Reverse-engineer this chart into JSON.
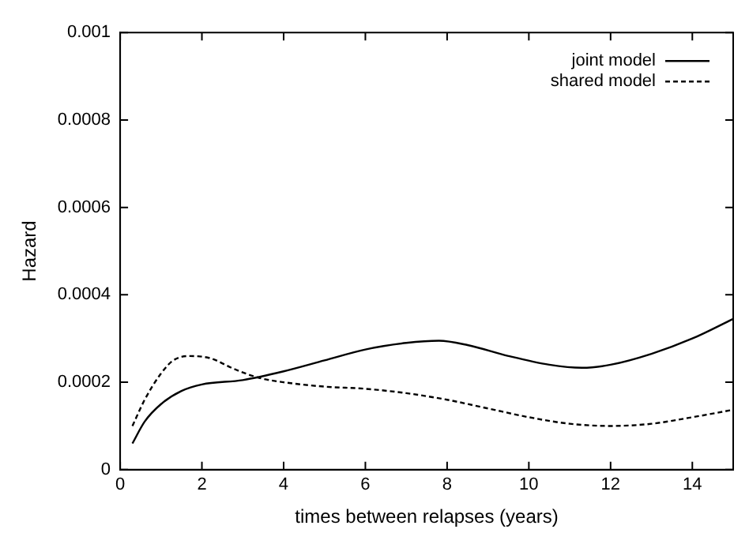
{
  "chart_data": {
    "type": "line",
    "xlabel": "times between relapses (years)",
    "ylabel": "Hazard",
    "xlim": [
      0,
      15
    ],
    "xticks": [
      0,
      2,
      4,
      6,
      8,
      10,
      12,
      14
    ],
    "ylim": [
      0,
      0.001
    ],
    "yticks": [
      0,
      0.0002,
      0.0004,
      0.0006,
      0.0008,
      0.001
    ],
    "grid": false,
    "legend": "top right",
    "marker": "none",
    "series": [
      {
        "name": "joint model",
        "color": "#000000",
        "line_style": "solid",
        "x": [
          0.3,
          0.6,
          1,
          1.5,
          2,
          3,
          4,
          5,
          6,
          7,
          7.8,
          8.5,
          9.5,
          10.5,
          11.3,
          12,
          13,
          14,
          15
        ],
        "values": [
          6e-05,
          0.00011,
          0.00015,
          0.00018,
          0.000195,
          0.000205,
          0.000225,
          0.00025,
          0.000275,
          0.00029,
          0.000295,
          0.000285,
          0.00026,
          0.00024,
          0.000233,
          0.00024,
          0.000265,
          0.0003,
          0.000345
        ]
      },
      {
        "name": "shared model",
        "color": "#000000",
        "line_style": "dashed",
        "x": [
          0.3,
          0.6,
          1,
          1.3,
          1.7,
          2.2,
          2.8,
          3.4,
          4,
          5,
          6,
          7,
          8,
          9,
          10,
          11,
          12,
          13,
          14,
          15
        ],
        "values": [
          0.0001,
          0.00016,
          0.00022,
          0.00025,
          0.00026,
          0.000255,
          0.00023,
          0.00021,
          0.0002,
          0.00019,
          0.000185,
          0.000175,
          0.00016,
          0.00014,
          0.00012,
          0.000105,
          0.0001,
          0.000105,
          0.00012,
          0.000137
        ]
      }
    ]
  }
}
